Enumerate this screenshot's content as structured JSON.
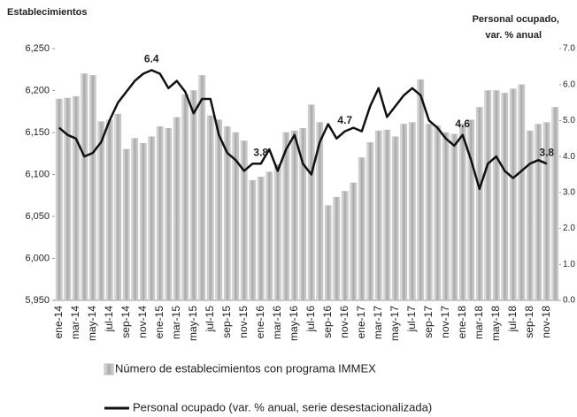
{
  "chart_data": {
    "type": "bar_line",
    "y_label": "Establecimientos",
    "y2_label": [
      "Personal ocupado,",
      "var. % anual"
    ],
    "categories": [
      "ene-14",
      null,
      "mar-14",
      null,
      "may-14",
      null,
      "jul-14",
      null,
      "sep-14",
      null,
      "nov-14",
      null,
      "ene-15",
      null,
      "mar-15",
      null,
      "may-15",
      null,
      "jul-15",
      null,
      "sep-15",
      null,
      "nov-15",
      null,
      "ene-16",
      null,
      "mar-16",
      null,
      "may-16",
      null,
      "jul-16",
      null,
      "sep-16",
      null,
      "nov-16",
      null,
      "ene-17",
      null,
      "mar-17",
      null,
      "may-17",
      null,
      "jul-17",
      null,
      "sep-17",
      null,
      "nov-17",
      null,
      "ene-18",
      null,
      "mar-18",
      null,
      "may-18",
      null,
      "jul-18",
      null,
      "sep-18",
      null,
      "nov-18",
      null
    ],
    "series": [
      {
        "name": "Número de establecimientos con programa IMMEX",
        "type": "bar",
        "color": "#b8b8b8",
        "values": [
          6190,
          6191,
          6193,
          6220,
          6218,
          6163,
          6165,
          6172,
          6130,
          6143,
          6137,
          6145,
          6157,
          6155,
          6168,
          6195,
          6200,
          6218,
          6170,
          6165,
          6157,
          6150,
          6140,
          6093,
          6097,
          6103,
          6112,
          6150,
          6152,
          6155,
          6183,
          6162,
          6063,
          6073,
          6080,
          6090,
          6120,
          6138,
          6152,
          6153,
          6145,
          6160,
          6162,
          6213,
          6160,
          6158,
          6150,
          6148,
          6160,
          6165,
          6180,
          6200,
          6200,
          6197,
          6202,
          6207,
          6152,
          6160,
          6162,
          6180
        ]
      },
      {
        "name": "Personal ocupado (var. % anual, serie desestacionalizada)",
        "type": "line",
        "axis": "y2",
        "color": "#111111",
        "values": [
          4.8,
          4.6,
          4.5,
          4.0,
          4.1,
          4.4,
          5.0,
          5.5,
          5.8,
          6.1,
          6.3,
          6.4,
          6.3,
          5.9,
          6.1,
          5.8,
          5.2,
          5.6,
          5.6,
          4.6,
          4.1,
          3.9,
          3.6,
          3.8,
          3.8,
          4.2,
          3.6,
          4.2,
          4.6,
          3.8,
          3.5,
          4.4,
          4.9,
          4.5,
          4.7,
          4.8,
          4.7,
          5.4,
          5.9,
          5.1,
          5.4,
          5.7,
          5.9,
          5.7,
          5.0,
          4.8,
          4.5,
          4.3,
          4.6,
          3.9,
          3.1,
          3.8,
          4.0,
          3.6,
          3.4,
          3.6,
          3.8,
          3.9,
          3.8,
          null
        ],
        "labeled_points": [
          11,
          24,
          34,
          48,
          58
        ]
      }
    ],
    "ylim": [
      5950,
      6250
    ],
    "yticks": [
      {
        "value": 5950,
        "label": "5,950"
      },
      {
        "value": 6000,
        "label": "6,000"
      },
      {
        "value": 6050,
        "label": "6,050"
      },
      {
        "value": 6100,
        "label": "6,100"
      },
      {
        "value": 6150,
        "label": "6,150"
      },
      {
        "value": 6200,
        "label": "6,200"
      },
      {
        "value": 6250,
        "label": "6,250"
      }
    ],
    "y2lim": [
      0,
      7
    ],
    "y2ticks": [
      {
        "value": 0,
        "label": "0.0"
      },
      {
        "value": 1,
        "label": "1.0"
      },
      {
        "value": 2,
        "label": "2.0"
      },
      {
        "value": 3,
        "label": "3.0"
      },
      {
        "value": 4,
        "label": "4.0"
      },
      {
        "value": 5,
        "label": "5.0"
      },
      {
        "value": 6,
        "label": "6.0"
      },
      {
        "value": 7,
        "label": "7.0"
      }
    ],
    "legend": "bottom"
  }
}
